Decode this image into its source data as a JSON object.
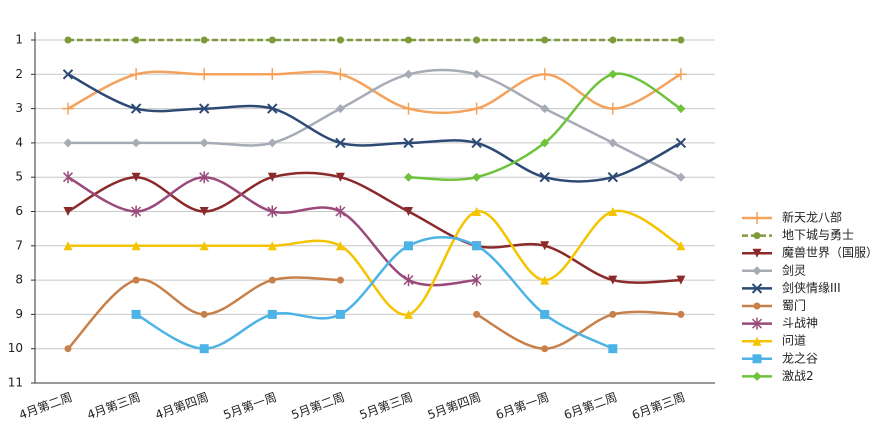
{
  "chart_data": {
    "type": "line",
    "y_inverted": true,
    "grid": true,
    "legend": "right",
    "categories": [
      "4月第二周",
      "4月第三周",
      "4月第四周",
      "5月第一周",
      "5月第二周",
      "5月第三周",
      "5月第四周",
      "6月第一周",
      "6月第二周",
      "6月第三周"
    ],
    "ylim": [
      1,
      11
    ],
    "yticks": [
      1,
      2,
      3,
      4,
      5,
      6,
      7,
      8,
      9,
      10,
      11
    ],
    "series": [
      {
        "name": "新天龙八部",
        "color": "#f5a25d",
        "marker": "plus",
        "values": [
          3,
          2,
          2,
          2,
          2,
          3,
          3,
          2,
          3,
          2
        ]
      },
      {
        "name": "地下城与勇士",
        "color": "#7f9a3c",
        "marker": "circle",
        "dash": true,
        "values": [
          1,
          1,
          1,
          1,
          1,
          1,
          1,
          1,
          1,
          1
        ]
      },
      {
        "name": "魔兽世界（国服）",
        "color": "#8b2a2a",
        "marker": "tri-down",
        "values": [
          6,
          5,
          6,
          5,
          5,
          6,
          7,
          7,
          8,
          8
        ]
      },
      {
        "name": "剑灵",
        "color": "#a6abb5",
        "marker": "diamond",
        "values": [
          4,
          4,
          4,
          4,
          3,
          2,
          2,
          3,
          4,
          5
        ]
      },
      {
        "name": "剑侠情缘III",
        "color": "#2c4a74",
        "marker": "x",
        "values": [
          2,
          3,
          3,
          3,
          4,
          4,
          4,
          5,
          5,
          4
        ]
      },
      {
        "name": "蜀门",
        "color": "#c8804a",
        "marker": "circle",
        "values": [
          10,
          8,
          9,
          8,
          8,
          null,
          9,
          10,
          9,
          9
        ]
      },
      {
        "name": "斗战神",
        "color": "#9a4a7a",
        "marker": "star",
        "values": [
          5,
          6,
          5,
          6,
          6,
          8,
          8,
          null,
          null,
          null
        ]
      },
      {
        "name": "问道",
        "color": "#f5c400",
        "marker": "tri-up",
        "values": [
          7,
          7,
          7,
          7,
          7,
          9,
          6,
          8,
          6,
          7
        ]
      },
      {
        "name": "龙之谷",
        "color": "#4db3e6",
        "marker": "square",
        "values": [
          null,
          9,
          10,
          9,
          9,
          7,
          7,
          9,
          10,
          null
        ]
      },
      {
        "name": "激战2",
        "color": "#6ec23c",
        "marker": "diamond",
        "values": [
          null,
          null,
          null,
          null,
          null,
          5,
          5,
          4,
          2,
          3
        ]
      }
    ]
  }
}
